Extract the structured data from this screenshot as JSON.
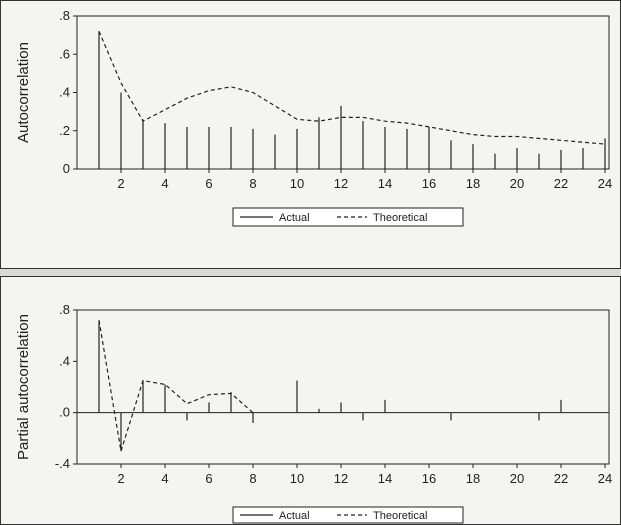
{
  "chart_data": [
    {
      "type": "bar",
      "ylabel": "Autocorrelation",
      "ylim": [
        0,
        0.8
      ],
      "yticks": [
        "0",
        ".2",
        ".4",
        ".6",
        ".8"
      ],
      "xticks": [
        "2",
        "4",
        "6",
        "8",
        "10",
        "12",
        "14",
        "16",
        "18",
        "20",
        "22",
        "24"
      ],
      "x": [
        1,
        2,
        3,
        4,
        5,
        6,
        7,
        8,
        9,
        10,
        11,
        12,
        13,
        14,
        15,
        16,
        17,
        18,
        19,
        20,
        21,
        22,
        23,
        24
      ],
      "series": [
        {
          "name": "Actual",
          "style": "spike",
          "values": [
            0.72,
            0.4,
            0.26,
            0.24,
            0.22,
            0.22,
            0.22,
            0.21,
            0.18,
            0.21,
            0.27,
            0.33,
            0.25,
            0.22,
            0.21,
            0.22,
            0.15,
            0.13,
            0.08,
            0.11,
            0.08,
            0.1,
            0.11,
            0.16
          ]
        },
        {
          "name": "Theoretical",
          "style": "dashed-line",
          "values": [
            0.72,
            0.45,
            0.25,
            0.31,
            0.37,
            0.41,
            0.43,
            0.4,
            0.33,
            0.26,
            0.25,
            0.27,
            0.27,
            0.25,
            0.24,
            0.22,
            0.2,
            0.18,
            0.17,
            0.17,
            0.16,
            0.15,
            0.14,
            0.13
          ]
        }
      ],
      "legend": {
        "position": "bottom",
        "items": [
          "Actual",
          "Theoretical"
        ]
      }
    },
    {
      "type": "bar",
      "ylabel": "Partial autocorrelation",
      "ylim": [
        -0.4,
        0.8
      ],
      "yticks": [
        "-.4",
        ".0",
        ".4",
        ".8"
      ],
      "xticks": [
        "2",
        "4",
        "6",
        "8",
        "10",
        "12",
        "14",
        "16",
        "18",
        "20",
        "22",
        "24"
      ],
      "x": [
        1,
        2,
        3,
        4,
        5,
        6,
        7,
        8,
        9,
        10,
        11,
        12,
        13,
        14,
        15,
        16,
        17,
        18,
        19,
        20,
        21,
        22,
        23,
        24
      ],
      "series": [
        {
          "name": "Actual",
          "style": "spike",
          "values": [
            0.72,
            -0.3,
            0.25,
            0.22,
            -0.06,
            0.08,
            0.16,
            -0.08,
            0.0,
            0.25,
            0.03,
            0.08,
            -0.06,
            0.1,
            0.0,
            0.0,
            -0.06,
            0.0,
            0.0,
            0.0,
            -0.06,
            0.1,
            0.0,
            0.0
          ]
        },
        {
          "name": "Theoretical",
          "style": "dashed-line",
          "x": [
            1,
            2,
            3,
            4,
            5,
            6,
            7,
            8
          ],
          "values": [
            0.72,
            -0.3,
            0.25,
            0.22,
            0.07,
            0.14,
            0.15,
            0.0
          ]
        }
      ],
      "legend": {
        "position": "bottom",
        "items": [
          "Actual",
          "Theoretical"
        ]
      }
    }
  ]
}
